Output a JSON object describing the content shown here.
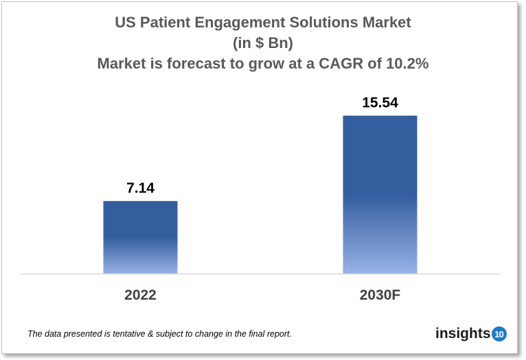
{
  "chart_data": {
    "type": "bar",
    "title": [
      "US Patient Engagement Solutions Market",
      "(in $ Bn)",
      "Market is forecast to grow at a CAGR of 10.2%"
    ],
    "categories": [
      "2022",
      "2030F"
    ],
    "values": [
      7.14,
      15.54
    ],
    "data_labels": [
      "7.14",
      "15.54"
    ],
    "xlabel": "",
    "ylabel": "",
    "ylim": [
      0,
      17
    ],
    "grid": false,
    "legend": "none",
    "colors": {
      "bar_top": "#355E9F",
      "bar_bottom": "#97B2E6",
      "title": "#595959"
    }
  },
  "footer": {
    "note": "The data presented is tentative & subject to change in the final report.",
    "logo_text": "insights",
    "logo_badge": "10"
  }
}
